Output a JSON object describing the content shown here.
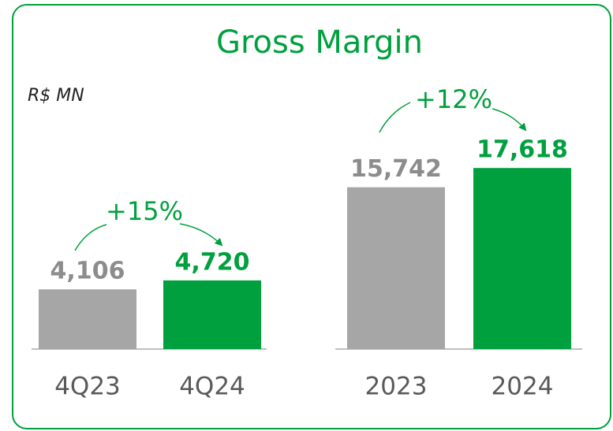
{
  "chart_data": [
    {
      "type": "bar",
      "title": "Gross Margin",
      "subtitle": "R$ MN",
      "categories": [
        "4Q23",
        "4Q24"
      ],
      "values": [
        4106,
        4720
      ],
      "value_labels": [
        "4,106",
        "4,720"
      ],
      "colors": [
        "#a6a6a6",
        "#00a03e"
      ],
      "ylim": [
        0,
        13000
      ],
      "annotation": "+15%"
    },
    {
      "type": "bar",
      "categories": [
        "2023",
        "2024"
      ],
      "values": [
        15742,
        17618
      ],
      "value_labels": [
        "15,742",
        "17,618"
      ],
      "colors": [
        "#a6a6a6",
        "#00a03e"
      ],
      "ylim": [
        0,
        18400
      ],
      "annotation": "+12%"
    }
  ]
}
